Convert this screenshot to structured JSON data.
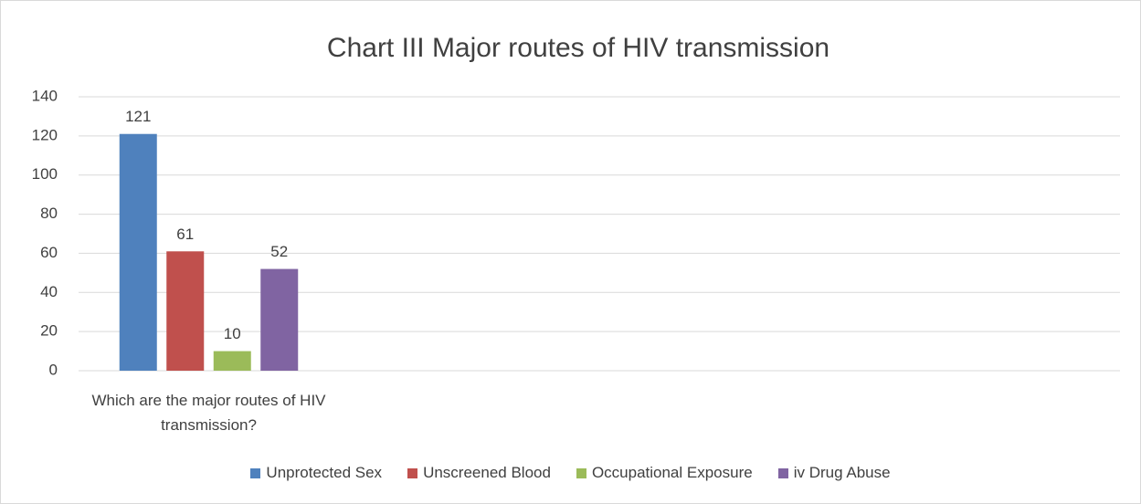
{
  "chart_data": {
    "type": "bar",
    "title": "Chart III Major routes of HIV transmission",
    "categories": [
      "Which are the major routes of HIV transmission?",
      null,
      null,
      null
    ],
    "series": [
      {
        "name": "Unprotected Sex",
        "color": "#4f81bd",
        "values": [
          121,
          null,
          null,
          null
        ]
      },
      {
        "name": "Unscreened Blood",
        "color": "#c0504d",
        "values": [
          61,
          null,
          null,
          null
        ]
      },
      {
        "name": "Occupational Exposure",
        "color": "#9bbb59",
        "values": [
          10,
          null,
          null,
          null
        ]
      },
      {
        "name": "iv Drug Abuse",
        "color": "#8064a2",
        "values": [
          52,
          null,
          null,
          null
        ]
      }
    ],
    "ylim": [
      0,
      140
    ],
    "yticks": [
      0,
      20,
      40,
      60,
      80,
      100,
      120,
      140
    ],
    "grid": true,
    "legend": "bottom"
  }
}
